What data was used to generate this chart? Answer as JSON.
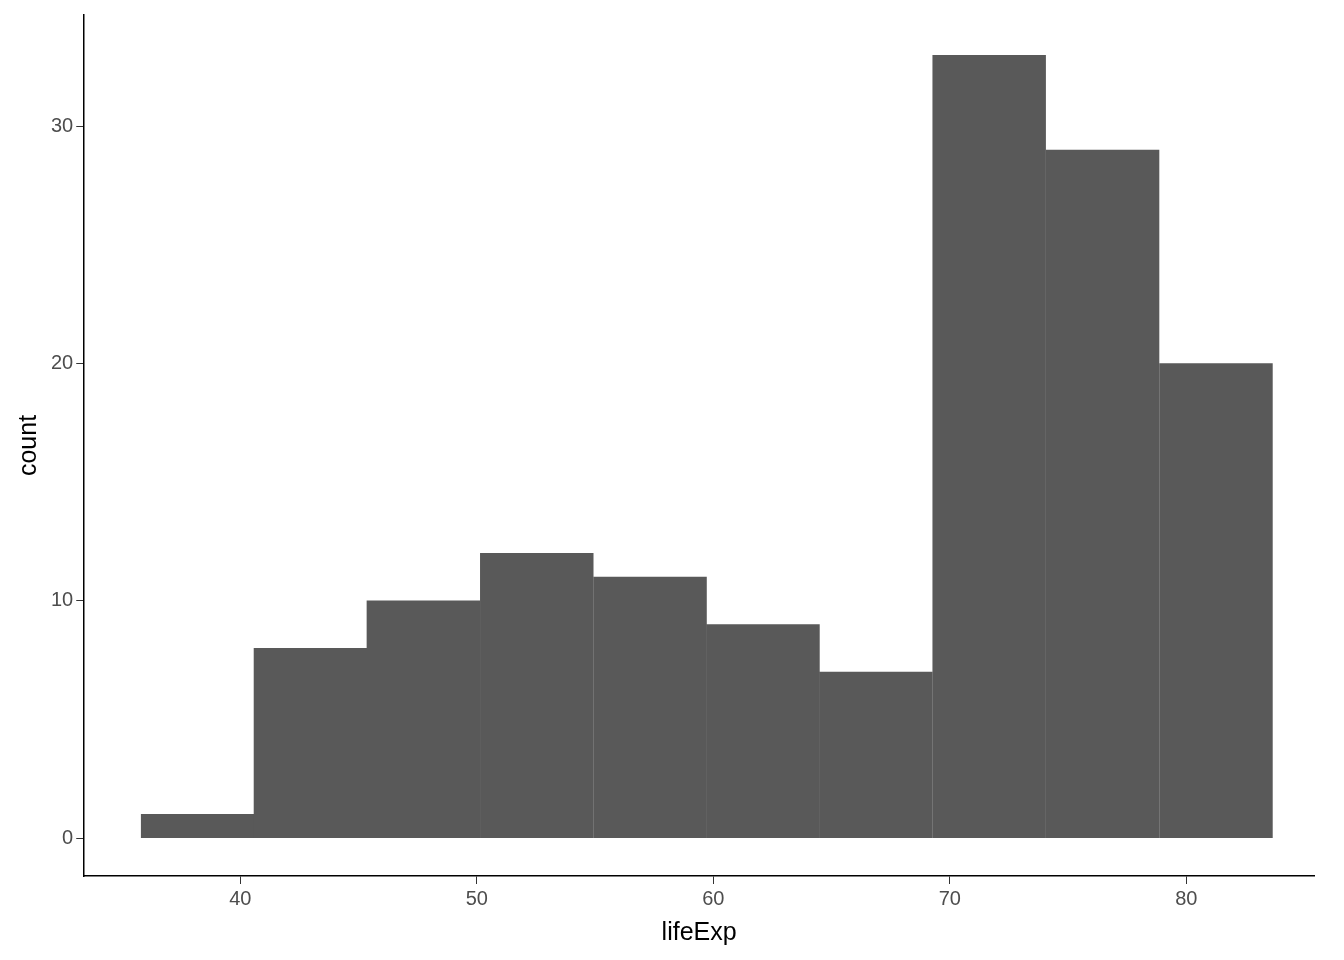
{
  "chart_data": {
    "type": "histogram",
    "xlabel": "lifeExp",
    "ylabel": "count",
    "bins": [
      35.8,
      40.59,
      45.34,
      50.14,
      54.93,
      59.72,
      64.48,
      69.27,
      74.06,
      78.86,
      83.65
    ],
    "values": [
      1,
      8,
      10,
      12,
      11,
      9,
      7,
      33,
      29,
      20
    ],
    "color": "#595959",
    "xlim": [
      33.4,
      85.4
    ],
    "xticks": [
      40,
      50,
      60,
      70,
      80
    ],
    "ylim": [
      -1.6,
      34.7
    ],
    "yticks": [
      0,
      10,
      20,
      30
    ],
    "grid": false,
    "legend": false
  }
}
